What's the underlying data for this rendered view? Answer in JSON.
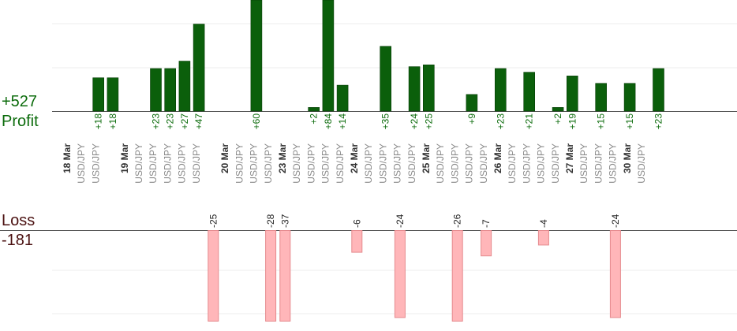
{
  "profit_total": "+527",
  "profit_label": "Profit",
  "loss_label": "Loss",
  "loss_total": "-181",
  "colors": {
    "profit_bar": "#0b5f0b",
    "profit_bar_edge": "#063c06",
    "profit_text": "#0b6b0b",
    "loss_bar": "#ffb6b9",
    "loss_bar_edge": "#e58a8e",
    "loss_text": "#4a1010",
    "pair_text": "#8a8a8a",
    "date_text": "#333333"
  },
  "chart_data": {
    "type": "bar",
    "pair": "USD/JPY",
    "date_labels": [
      {
        "label": "18 Mar",
        "slot": 0
      },
      {
        "label": "19 Mar",
        "slot": 4
      },
      {
        "label": "20 Mar",
        "slot": 11
      },
      {
        "label": "23 Mar",
        "slot": 15
      },
      {
        "label": "24 Mar",
        "slot": 20
      },
      {
        "label": "25 Mar",
        "slot": 25
      },
      {
        "label": "26 Mar",
        "slot": 30
      },
      {
        "label": "27 Mar",
        "slot": 35
      },
      {
        "label": "30 Mar",
        "slot": 39
      }
    ],
    "trades": [
      {
        "slot": 1,
        "value": 18
      },
      {
        "slot": 2,
        "value": 18
      },
      {
        "slot": 5,
        "value": 23
      },
      {
        "slot": 6,
        "value": 23
      },
      {
        "slot": 7,
        "value": 27
      },
      {
        "slot": 8,
        "value": 47
      },
      {
        "slot": 9,
        "value": -25
      },
      {
        "slot": 12,
        "value": 60
      },
      {
        "slot": 13,
        "value": -28
      },
      {
        "slot": 14,
        "value": -37
      },
      {
        "slot": 16,
        "value": 2
      },
      {
        "slot": 17,
        "value": 84
      },
      {
        "slot": 18,
        "value": 14
      },
      {
        "slot": 19,
        "value": -6
      },
      {
        "slot": 21,
        "value": 35
      },
      {
        "slot": 22,
        "value": -24
      },
      {
        "slot": 23,
        "value": 24
      },
      {
        "slot": 24,
        "value": 25
      },
      {
        "slot": 26,
        "value": -26
      },
      {
        "slot": 27,
        "value": 9
      },
      {
        "slot": 28,
        "value": -7
      },
      {
        "slot": 29,
        "value": 23
      },
      {
        "slot": 31,
        "value": 21
      },
      {
        "slot": 32,
        "value": -4
      },
      {
        "slot": 33,
        "value": 2
      },
      {
        "slot": 34,
        "value": 19
      },
      {
        "slot": 36,
        "value": 15
      },
      {
        "slot": 37,
        "value": -24
      },
      {
        "slot": 38,
        "value": 15
      },
      {
        "slot": 40,
        "value": 23
      }
    ]
  }
}
